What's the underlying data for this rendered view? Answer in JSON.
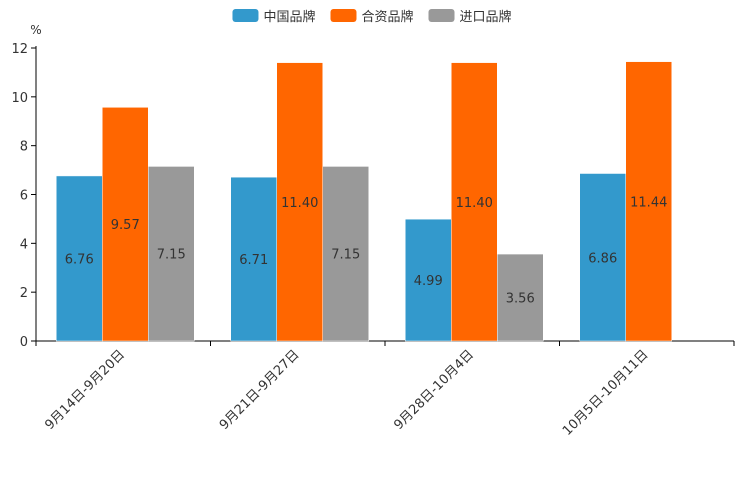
{
  "chart_data": {
    "type": "bar",
    "unit": "%",
    "categories": [
      "9月14日-9月20日",
      "9月21日-9月27日",
      "9月28日-10月4日",
      "10月5日-10月11日"
    ],
    "series": [
      {
        "name": "中国品牌",
        "color": "#3399cc",
        "values": [
          6.76,
          6.71,
          4.99,
          6.86
        ],
        "labels": [
          "6.76",
          "6.71",
          "4.99",
          "6.86"
        ]
      },
      {
        "name": "合资品牌",
        "color": "#ff6600",
        "values": [
          9.57,
          11.4,
          11.4,
          11.44
        ],
        "labels": [
          "9.57",
          "11.40",
          "11.40",
          "11.44"
        ]
      },
      {
        "name": "进口品牌",
        "color": "#999999",
        "values": [
          7.15,
          7.15,
          3.56,
          null
        ],
        "labels": [
          "7.15",
          "7.15",
          "3.56",
          ""
        ]
      }
    ],
    "ylim": [
      0,
      12
    ],
    "yticks": [
      "0",
      "2",
      "4",
      "6",
      "8",
      "10",
      "12"
    ],
    "legend_position": "top-center",
    "grid": false
  }
}
